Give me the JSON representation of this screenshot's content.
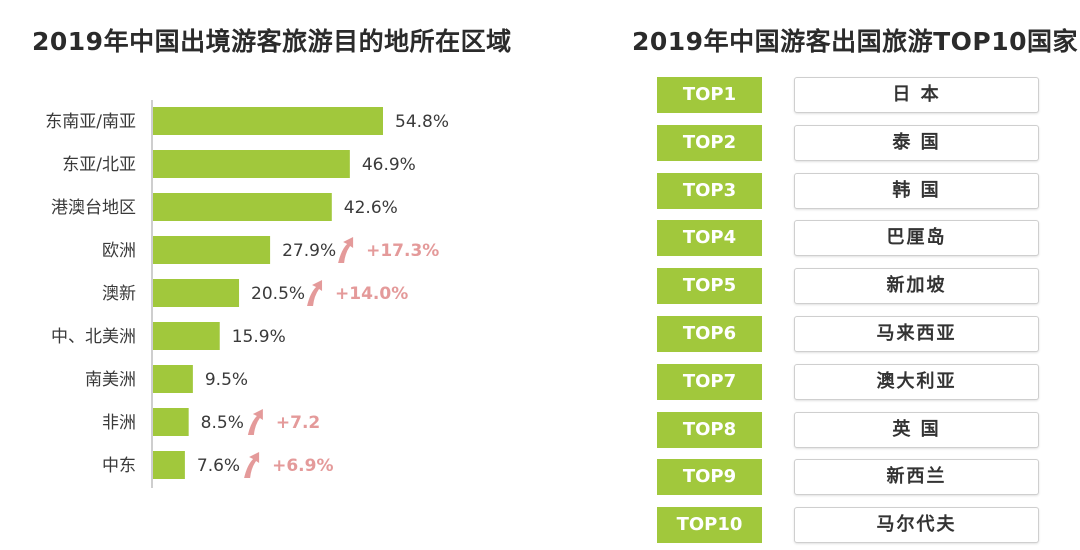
{
  "left_title": "2019年中国出境游客旅游目的地所在区域",
  "right_title": "2019年中国游客出国旅游TOP10国家",
  "colors": {
    "bar": "#a1c83c",
    "growth": "#e49a9a",
    "badge": "#a1c83c"
  },
  "chart_data": {
    "type": "bar",
    "orientation": "horizontal",
    "title": "2019年中国出境游客旅游目的地所在区域",
    "xlabel": "",
    "ylabel": "",
    "xlim": [
      0,
      60
    ],
    "categories": [
      "东南亚/南亚",
      "东亚/北亚",
      "港澳台地区",
      "欧洲",
      "澳新",
      "中、北美洲",
      "南美洲",
      "非洲",
      "中东"
    ],
    "values": [
      54.8,
      46.9,
      42.6,
      27.9,
      20.5,
      15.9,
      9.5,
      8.5,
      7.6
    ],
    "value_labels": [
      "54.8%",
      "46.9%",
      "42.6%",
      "27.9%",
      "20.5%",
      "15.9%",
      "9.5%",
      "8.5%",
      "7.6%"
    ],
    "growth_labels": [
      "",
      "",
      "",
      "+17.3%",
      "+14.0%",
      "",
      "",
      "+7.2",
      "+6.9%"
    ]
  },
  "ranking": [
    {
      "rank": "TOP1",
      "country": "日 本"
    },
    {
      "rank": "TOP2",
      "country": "泰 国"
    },
    {
      "rank": "TOP3",
      "country": "韩 国"
    },
    {
      "rank": "TOP4",
      "country": "巴厘岛"
    },
    {
      "rank": "TOP5",
      "country": "新加坡"
    },
    {
      "rank": "TOP6",
      "country": "马来西亚"
    },
    {
      "rank": "TOP7",
      "country": "澳大利亚"
    },
    {
      "rank": "TOP8",
      "country": "英 国"
    },
    {
      "rank": "TOP9",
      "country": "新西兰"
    },
    {
      "rank": "TOP10",
      "country": "马尔代夫"
    }
  ]
}
